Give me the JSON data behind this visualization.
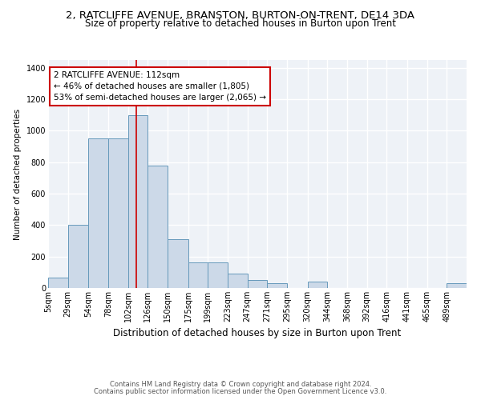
{
  "title_line1": "2, RATCLIFFE AVENUE, BRANSTON, BURTON-ON-TRENT, DE14 3DA",
  "title_line2": "Size of property relative to detached houses in Burton upon Trent",
  "xlabel": "Distribution of detached houses by size in Burton upon Trent",
  "ylabel": "Number of detached properties",
  "footer_line1": "Contains HM Land Registry data © Crown copyright and database right 2024.",
  "footer_line2": "Contains public sector information licensed under the Open Government Licence v3.0.",
  "annotation_title": "2 RATCLIFFE AVENUE: 112sqm",
  "annotation_line1": "← 46% of detached houses are smaller (1,805)",
  "annotation_line2": "53% of semi-detached houses are larger (2,065) →",
  "bar_color": "#ccd9e8",
  "bar_edge_color": "#6699bb",
  "vertical_line_color": "#cc0000",
  "vertical_line_x": 112,
  "annotation_box_edgecolor": "#cc0000",
  "categories": [
    "5sqm",
    "29sqm",
    "54sqm",
    "78sqm",
    "102sqm",
    "126sqm",
    "150sqm",
    "175sqm",
    "199sqm",
    "223sqm",
    "247sqm",
    "271sqm",
    "295sqm",
    "320sqm",
    "344sqm",
    "368sqm",
    "392sqm",
    "416sqm",
    "441sqm",
    "465sqm",
    "489sqm"
  ],
  "bin_edges": [
    5,
    29,
    54,
    78,
    102,
    126,
    150,
    175,
    199,
    223,
    247,
    271,
    295,
    320,
    344,
    368,
    392,
    416,
    441,
    465,
    489,
    513
  ],
  "bar_heights": [
    65,
    400,
    950,
    950,
    1100,
    780,
    310,
    165,
    165,
    90,
    50,
    30,
    0,
    40,
    0,
    0,
    0,
    0,
    0,
    0,
    30
  ],
  "ylim": [
    0,
    1450
  ],
  "yticks": [
    0,
    200,
    400,
    600,
    800,
    1000,
    1200,
    1400
  ],
  "plot_bgcolor": "#eef2f7",
  "fig_bgcolor": "#ffffff",
  "grid_color": "#ffffff",
  "title_fontsize": 9.5,
  "subtitle_fontsize": 8.5,
  "ylabel_fontsize": 7.5,
  "xlabel_fontsize": 8.5,
  "tick_fontsize": 7,
  "footer_fontsize": 6,
  "annotation_fontsize": 7.5
}
